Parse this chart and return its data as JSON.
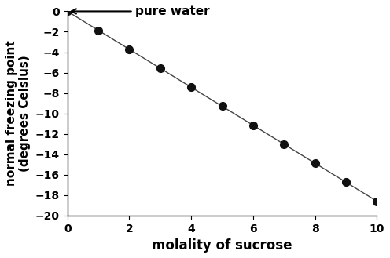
{
  "x": [
    0,
    1,
    2,
    3,
    4,
    5,
    6,
    7,
    8,
    9,
    10
  ],
  "y": [
    0,
    -1.86,
    -3.72,
    -5.58,
    -7.44,
    -9.3,
    -11.16,
    -13.02,
    -14.88,
    -16.74,
    -18.6
  ],
  "xlabel": "molality of sucrose",
  "ylabel": "normal freezing point\n(degrees Celsius)",
  "annotation_text": "pure water",
  "xlim": [
    0,
    10
  ],
  "ylim": [
    -20,
    0
  ],
  "xticks": [
    0,
    2,
    4,
    6,
    8,
    10
  ],
  "yticks": [
    0,
    -2,
    -4,
    -6,
    -8,
    -10,
    -12,
    -14,
    -16,
    -18,
    -20
  ],
  "line_color": "#444444",
  "marker_color": "#111111",
  "bg_color": "#ffffff",
  "marker_size": 7,
  "line_width": 1.0,
  "xlabel_fontsize": 12,
  "ylabel_fontsize": 11,
  "tick_fontsize": 10,
  "annotation_fontsize": 11
}
